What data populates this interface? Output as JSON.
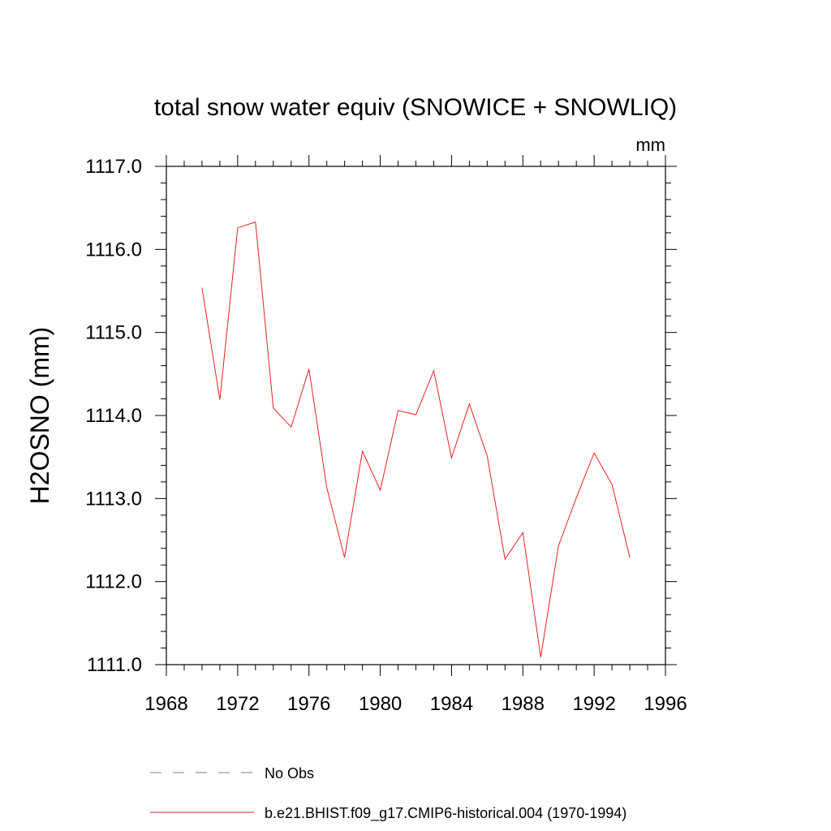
{
  "chart_data": {
    "type": "line",
    "title": "total snow water equiv (SNOWICE + SNOWLIQ)",
    "units": "mm",
    "xlabel": "",
    "ylabel": "H2OSNO  (mm)",
    "xlim": [
      1968,
      1996
    ],
    "ylim": [
      1111.0,
      1117.0
    ],
    "x_ticks": [
      1968,
      1972,
      1976,
      1980,
      1984,
      1988,
      1992,
      1996
    ],
    "x_tick_labels": [
      "1968",
      "1972",
      "1976",
      "1980",
      "1984",
      "1988",
      "1992",
      "1996"
    ],
    "y_ticks": [
      1111.0,
      1112.0,
      1113.0,
      1114.0,
      1115.0,
      1116.0,
      1117.0
    ],
    "y_tick_labels": [
      "1111.0",
      "1112.0",
      "1113.0",
      "1114.0",
      "1115.0",
      "1116.0",
      "1117.0"
    ],
    "grid": false,
    "legend_position": "bottom",
    "series": [
      {
        "name": "No Obs",
        "color": "#7a78b8",
        "style": "dashed",
        "x": [],
        "values": []
      },
      {
        "name": "b.e21.BHIST.f09_g17.CMIP6-historical.004 (1970-1994)",
        "color": "#e8201f",
        "style": "solid",
        "x": [
          1970,
          1971,
          1972,
          1973,
          1974,
          1975,
          1976,
          1977,
          1978,
          1979,
          1980,
          1981,
          1982,
          1983,
          1984,
          1985,
          1986,
          1987,
          1988,
          1989,
          1990,
          1991,
          1992,
          1993,
          1994
        ],
        "values": [
          1115.54,
          1114.19,
          1116.26,
          1116.33,
          1114.09,
          1113.86,
          1114.56,
          1113.13,
          1112.29,
          1113.57,
          1113.1,
          1114.06,
          1114.01,
          1114.54,
          1113.49,
          1114.14,
          1113.51,
          1112.27,
          1112.59,
          1111.09,
          1112.43,
          1113.01,
          1113.55,
          1113.17,
          1112.29
        ]
      }
    ]
  }
}
